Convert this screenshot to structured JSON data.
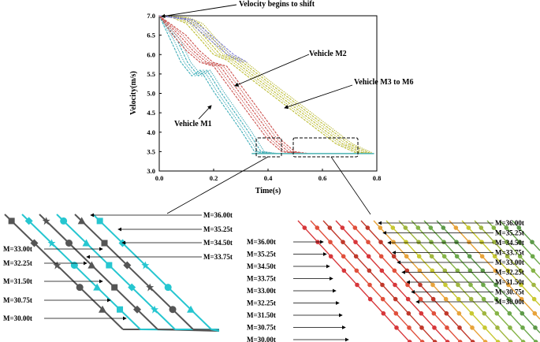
{
  "chart_data": {
    "type": "line",
    "xlabel": "Time(s)",
    "ylabel": "Velocity(m/s)",
    "xlim": [
      0.0,
      0.8
    ],
    "ylim": [
      3.0,
      7.0
    ],
    "xticks": [
      "0.0",
      "0.2",
      "0.4",
      "0.6",
      "0.8"
    ],
    "yticks": [
      "3.0",
      "3.5",
      "4.0",
      "4.5",
      "5.0",
      "5.5",
      "6.0",
      "6.5",
      "7.0"
    ],
    "series": [
      {
        "name": "Vehicle M1",
        "color": "#3fb8c4",
        "x": [
          0,
          0.04,
          0.08,
          0.12,
          0.15,
          0.165,
          0.2,
          0.25,
          0.3,
          0.35,
          0.4
        ],
        "values": [
          7.0,
          6.4,
          5.8,
          5.45,
          5.6,
          5.45,
          5.05,
          4.55,
          4.05,
          3.5,
          3.45
        ]
      },
      {
        "name": "Vehicle M2",
        "color": "#d9534f",
        "x": [
          0,
          0.05,
          0.1,
          0.15,
          0.2,
          0.3,
          0.4,
          0.45,
          0.5
        ],
        "values": [
          7.0,
          6.5,
          6.1,
          5.8,
          5.7,
          4.75,
          3.8,
          3.5,
          3.45
        ]
      },
      {
        "name": "Vehicle M3 to M6",
        "color": "#c8c832",
        "x": [
          0,
          0.05,
          0.1,
          0.15,
          0.2,
          0.25,
          0.35,
          0.5,
          0.65,
          0.72,
          0.8
        ],
        "values": [
          7.0,
          6.95,
          6.8,
          6.4,
          6.0,
          5.85,
          5.3,
          4.5,
          3.7,
          3.48,
          3.45
        ]
      },
      {
        "name": "Vehicle M3 to M6 (blue)",
        "color": "#8a8ae8",
        "x": [
          0,
          0.05,
          0.1,
          0.15,
          0.2,
          0.25,
          0.3
        ],
        "values": [
          7.0,
          6.95,
          6.9,
          6.6,
          6.3,
          6.0,
          5.8
        ]
      }
    ],
    "annotations": [
      {
        "text": "Velocity begins to shift"
      },
      {
        "text": "Vehicle M2"
      },
      {
        "text": "Vehicle M3 to M6"
      },
      {
        "text": "Vehicle M1"
      }
    ],
    "zoom_left_labels": [
      "M=36.00t",
      "M=35.25t",
      "M=34.50t",
      "M=33.75t",
      "M=33.00t",
      "M=32.25t",
      "M=31.50t",
      "M=30.75t",
      "M=30.00t"
    ],
    "zoom_right_left_labels": [
      "M=36.00t",
      "M=35.25t",
      "M=34.50t",
      "M=33.75t",
      "M=33.00t",
      "M=32.25t",
      "M=31.50t",
      "M=30.75t",
      "M=30.00t"
    ],
    "zoom_right_right_labels": [
      "M=36.00t",
      "M=35.25t",
      "M=34.50t",
      "M=33.75t",
      "M=33.00t",
      "M=32.25t",
      "M=31.50t",
      "M=30.75t",
      "M=30.00t"
    ]
  }
}
